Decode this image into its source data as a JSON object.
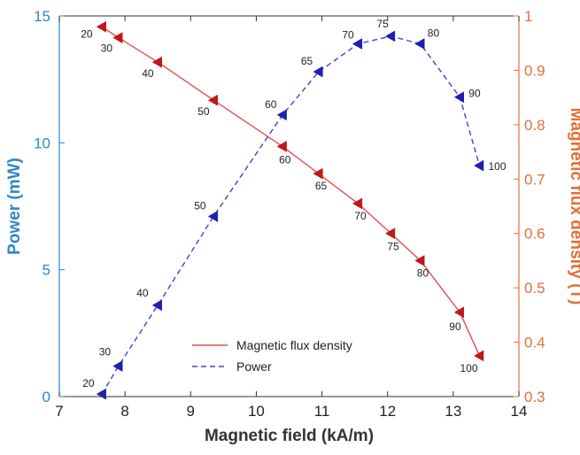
{
  "chart_data": {
    "type": "line",
    "xlabel": "Magnetic field (kA/m)",
    "ylabel_left": "Power (mW)",
    "ylabel_right": "Magnetic flux density (T)",
    "xlim": [
      7,
      14
    ],
    "ylim_left": [
      0,
      15
    ],
    "ylim_right": [
      0.3,
      1
    ],
    "x_ticks": [
      "7",
      "8",
      "9",
      "10",
      "11",
      "12",
      "13",
      "14"
    ],
    "y_ticks_left": [
      "0",
      "5",
      "10",
      "15"
    ],
    "y_ticks_right": [
      "0.3",
      "0.4",
      "0.5",
      "0.6",
      "0.7",
      "0.8",
      "0.9",
      "1"
    ],
    "grid": false,
    "legend_position": "bottom-center",
    "colors": {
      "power": "#4040d0",
      "flux": "#e05050",
      "flux_marker": "#c01818",
      "power_marker": "#1f1fb4",
      "left_axis": "#2e86c8",
      "right_axis": "#e0703a"
    },
    "series": [
      {
        "name": "Magnetic flux density",
        "axis": "right",
        "style": "solid",
        "marker": "triangle-left",
        "points": [
          {
            "x": 7.65,
            "y": 0.98,
            "label": "20"
          },
          {
            "x": 7.9,
            "y": 0.96,
            "label": "30"
          },
          {
            "x": 8.5,
            "y": 0.915,
            "label": "40"
          },
          {
            "x": 9.35,
            "y": 0.845,
            "label": "50"
          },
          {
            "x": 10.4,
            "y": 0.76,
            "label": "60"
          },
          {
            "x": 10.95,
            "y": 0.71,
            "label": "65"
          },
          {
            "x": 11.55,
            "y": 0.655,
            "label": "70"
          },
          {
            "x": 12.05,
            "y": 0.6,
            "label": "75"
          },
          {
            "x": 12.5,
            "y": 0.55,
            "label": "80"
          },
          {
            "x": 13.1,
            "y": 0.455,
            "label": "90"
          },
          {
            "x": 13.4,
            "y": 0.375,
            "label": "100"
          }
        ]
      },
      {
        "name": "Power",
        "axis": "left",
        "style": "dashed",
        "marker": "triangle-left",
        "points": [
          {
            "x": 7.65,
            "y": 0.1,
            "label": "20"
          },
          {
            "x": 7.9,
            "y": 1.2,
            "label": "30"
          },
          {
            "x": 8.5,
            "y": 3.6,
            "label": "40"
          },
          {
            "x": 9.35,
            "y": 7.1,
            "label": "50"
          },
          {
            "x": 10.4,
            "y": 11.1,
            "label": "60"
          },
          {
            "x": 10.95,
            "y": 12.8,
            "label": "65"
          },
          {
            "x": 11.55,
            "y": 13.9,
            "label": "70"
          },
          {
            "x": 12.05,
            "y": 14.2,
            "label": "75"
          },
          {
            "x": 12.5,
            "y": 13.9,
            "label": "80"
          },
          {
            "x": 13.1,
            "y": 11.8,
            "label": "90"
          },
          {
            "x": 13.4,
            "y": 9.1,
            "label": "100"
          }
        ]
      }
    ]
  }
}
